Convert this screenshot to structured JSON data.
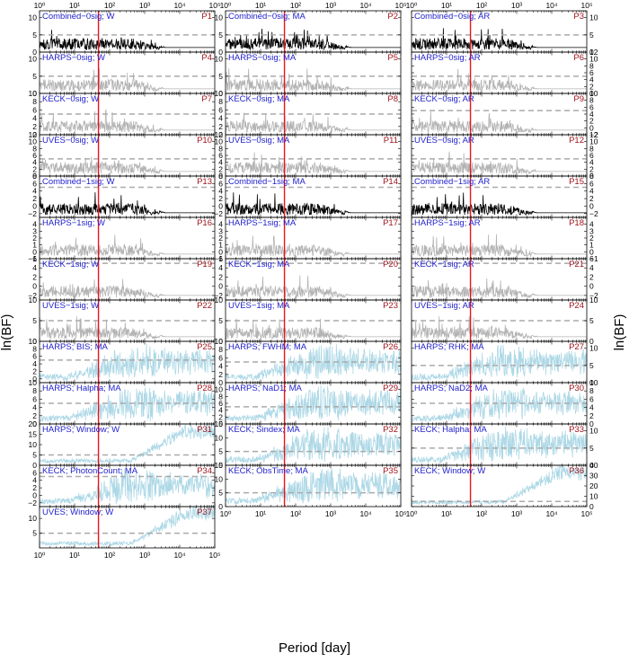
{
  "chart_data": {
    "type": "line",
    "layout": "grid of periodogram panels, 3 columns",
    "xlabel": "Period [day]",
    "ylabel": "ln(BF)",
    "xscale": "log",
    "xlim": [
      1,
      100000
    ],
    "x_tick_labels": [
      "10⁰",
      "10¹",
      "10²",
      "10³",
      "10⁴",
      "10⁵"
    ],
    "x_tick_values": [
      1,
      10,
      100,
      1000,
      10000,
      100000
    ],
    "signal_period": 48,
    "colors": {
      "combined": "#000000",
      "instrument": "#b3b3b3",
      "activity": "#add8e6",
      "threshold": "#aaaaaa",
      "signal": "#e8141c",
      "title": "#1f1fcc",
      "id": "#a0141c"
    },
    "panels": [
      {
        "id": "P1",
        "title": "Combined−0sig; W",
        "kind": "combined",
        "ylim": [
          0,
          12
        ],
        "yticks": [
          0,
          5,
          10
        ],
        "threshold": 5
      },
      {
        "id": "P2",
        "title": "Combined−0sig; MA",
        "kind": "combined",
        "ylim": [
          0,
          12
        ],
        "yticks": [
          0,
          5,
          10
        ],
        "threshold": 5
      },
      {
        "id": "P3",
        "title": "Combined−0sig; AR",
        "kind": "combined",
        "ylim": [
          0,
          12
        ],
        "yticks": [
          0,
          5,
          10
        ],
        "threshold": 5
      },
      {
        "id": "P4",
        "title": "HARPS−0sig; W",
        "kind": "instrument",
        "ylim": [
          0,
          12
        ],
        "yticks": [
          0,
          5,
          10
        ],
        "threshold": 5
      },
      {
        "id": "P5",
        "title": "HARPS−0sig; MA",
        "kind": "instrument",
        "ylim": [
          0,
          12
        ],
        "yticks": [
          0,
          5,
          10
        ],
        "threshold": 5
      },
      {
        "id": "P6",
        "title": "HARPS−0sig; AR",
        "kind": "instrument",
        "ylim": [
          0,
          12
        ],
        "yticks": [
          0,
          2,
          4,
          6,
          8,
          10,
          12
        ],
        "threshold": 5
      },
      {
        "id": "P7",
        "title": "KECK−0sig; W",
        "kind": "instrument",
        "ylim": [
          0,
          10
        ],
        "yticks": [
          0,
          2,
          4,
          6,
          8,
          10
        ],
        "threshold": 5
      },
      {
        "id": "P8",
        "title": "KECK−0sig; MA",
        "kind": "instrument",
        "ylim": [
          0,
          10
        ],
        "yticks": [
          0,
          2,
          4,
          6,
          8,
          10
        ],
        "threshold": 5
      },
      {
        "id": "P9",
        "title": "KECK−0sig; AR",
        "kind": "instrument",
        "ylim": [
          -2,
          10
        ],
        "yticks": [
          -2,
          0,
          2,
          4,
          6,
          8,
          10
        ],
        "threshold": 5
      },
      {
        "id": "P10",
        "title": "UVES−0sig; W",
        "kind": "instrument",
        "ylim": [
          0,
          12
        ],
        "yticks": [
          0,
          2,
          4,
          6,
          8,
          10,
          12
        ],
        "threshold": 5
      },
      {
        "id": "P11",
        "title": "UVES−0sig; MA",
        "kind": "instrument",
        "ylim": [
          0,
          12
        ],
        "yticks": [
          0,
          2,
          4,
          6,
          8,
          10,
          12
        ],
        "threshold": 5
      },
      {
        "id": "P12",
        "title": "UVES−0sig; AR",
        "kind": "instrument",
        "ylim": [
          0,
          12
        ],
        "yticks": [
          0,
          2,
          4,
          6,
          8,
          10,
          12
        ],
        "threshold": 5
      },
      {
        "id": "P13",
        "title": "Combined−1sig; W",
        "kind": "combined",
        "ylim": [
          -3,
          8
        ],
        "yticks": [
          -2,
          0,
          2,
          4,
          6,
          8
        ],
        "threshold": 5
      },
      {
        "id": "P14",
        "title": "Combined−1sig; MA",
        "kind": "combined",
        "ylim": [
          -3,
          8
        ],
        "yticks": [
          -2,
          0,
          2,
          4,
          6,
          8
        ],
        "threshold": 5
      },
      {
        "id": "P15",
        "title": "Combined−1sig; AR",
        "kind": "combined",
        "ylim": [
          -3,
          8
        ],
        "yticks": [
          -2,
          0,
          2,
          4,
          6,
          8
        ],
        "threshold": 5
      },
      {
        "id": "P16",
        "title": "HARPS−1sig; W",
        "kind": "instrument",
        "ylim": [
          -1,
          5
        ],
        "yticks": [
          -1,
          0,
          1,
          2,
          3,
          4
        ],
        "threshold": 5
      },
      {
        "id": "P17",
        "title": "HARPS−1sig; MA",
        "kind": "instrument",
        "ylim": [
          -1,
          5
        ],
        "yticks": [
          -1,
          0,
          1,
          2,
          3,
          4
        ],
        "threshold": 5
      },
      {
        "id": "P18",
        "title": "HARPS−1sig; AR",
        "kind": "instrument",
        "ylim": [
          -1,
          5
        ],
        "yticks": [
          -1,
          0,
          1,
          2,
          3,
          4
        ],
        "threshold": 5
      },
      {
        "id": "P19",
        "title": "KECK−1sig; W",
        "kind": "instrument",
        "ylim": [
          -3,
          6
        ],
        "yticks": [
          -2,
          0,
          2,
          4,
          6
        ],
        "threshold": 5
      },
      {
        "id": "P20",
        "title": "KECK−1sig; MA",
        "kind": "instrument",
        "ylim": [
          -3,
          6
        ],
        "yticks": [
          -2,
          0,
          2,
          4,
          6
        ],
        "threshold": 5
      },
      {
        "id": "P21",
        "title": "KECK−1sig; AR",
        "kind": "instrument",
        "ylim": [
          -3,
          6
        ],
        "yticks": [
          -2,
          0,
          2,
          4,
          6
        ],
        "threshold": 5
      },
      {
        "id": "P22",
        "title": "UVES−1sig; W",
        "kind": "instrument",
        "ylim": [
          0,
          10
        ],
        "yticks": [
          0,
          5,
          10
        ],
        "threshold": 5
      },
      {
        "id": "P23",
        "title": "UVES−1sig; MA",
        "kind": "instrument",
        "ylim": [
          0,
          10
        ],
        "yticks": [
          0,
          5,
          10
        ],
        "threshold": 5
      },
      {
        "id": "P24",
        "title": "UVES−1sig; AR",
        "kind": "instrument",
        "ylim": [
          0,
          10
        ],
        "yticks": [
          0,
          5,
          10
        ],
        "threshold": 5
      },
      {
        "id": "P25",
        "title": "HARPS; BIS; MA",
        "kind": "activity",
        "ylim": [
          -1,
          10
        ],
        "yticks": [
          0,
          2,
          4,
          6,
          8,
          10
        ],
        "threshold": 5
      },
      {
        "id": "P26",
        "title": "HARPS; FWHM; MA",
        "kind": "activity",
        "ylim": [
          0,
          10
        ],
        "yticks": [
          0,
          2,
          4,
          6,
          8,
          10
        ],
        "threshold": 5
      },
      {
        "id": "P27",
        "title": "HARPS; RHK; MA",
        "kind": "activity",
        "ylim": [
          0,
          12
        ],
        "yticks": [
          0,
          5,
          10
        ],
        "threshold": 5
      },
      {
        "id": "P28",
        "title": "HARPS; Halpha; MA",
        "kind": "activity",
        "ylim": [
          0,
          10
        ],
        "yticks": [
          0,
          2,
          4,
          6,
          8,
          10
        ],
        "threshold": 5
      },
      {
        "id": "P29",
        "title": "HARPS; NaD1; MA",
        "kind": "activity",
        "ylim": [
          0,
          12
        ],
        "yticks": [
          0,
          2,
          4,
          6,
          8,
          10
        ],
        "threshold": 5
      },
      {
        "id": "P30",
        "title": "HARPS; NaD2; MA",
        "kind": "activity",
        "ylim": [
          0,
          10
        ],
        "yticks": [
          0,
          2,
          4,
          6,
          8,
          10
        ],
        "threshold": 5
      },
      {
        "id": "P31",
        "title": "HARPS; Window; W",
        "kind": "activity",
        "ylim": [
          0,
          20
        ],
        "yticks": [
          0,
          5,
          10,
          15,
          20
        ],
        "threshold": 5
      },
      {
        "id": "P32",
        "title": "KECK; Sindex; MA",
        "kind": "activity",
        "ylim": [
          0,
          15
        ],
        "yticks": [
          0,
          5,
          10,
          15
        ],
        "threshold": 5
      },
      {
        "id": "P33",
        "title": "KECK; Halpha; MA",
        "kind": "activity",
        "ylim": [
          0,
          12
        ],
        "yticks": [
          0,
          5,
          10
        ],
        "threshold": 5
      },
      {
        "id": "P34",
        "title": "KECK; PhotonCount; MA",
        "kind": "activity",
        "ylim": [
          -3,
          8
        ],
        "yticks": [
          -2,
          0,
          2,
          4,
          6
        ],
        "threshold": 5
      },
      {
        "id": "P35",
        "title": "KECK; ObsTime; MA",
        "kind": "activity",
        "ylim": [
          0,
          15
        ],
        "yticks": [
          0,
          5,
          10,
          15
        ],
        "threshold": 5
      },
      {
        "id": "P36",
        "title": "KECK; Window; W",
        "kind": "activity",
        "ylim": [
          0,
          40
        ],
        "yticks": [
          0,
          10,
          20,
          30,
          40
        ],
        "threshold": 5
      },
      {
        "id": "P37",
        "title": "UVES; Window; W",
        "kind": "activity",
        "ylim": [
          0,
          14
        ],
        "yticks": [
          5,
          10
        ],
        "threshold": 5
      }
    ]
  }
}
